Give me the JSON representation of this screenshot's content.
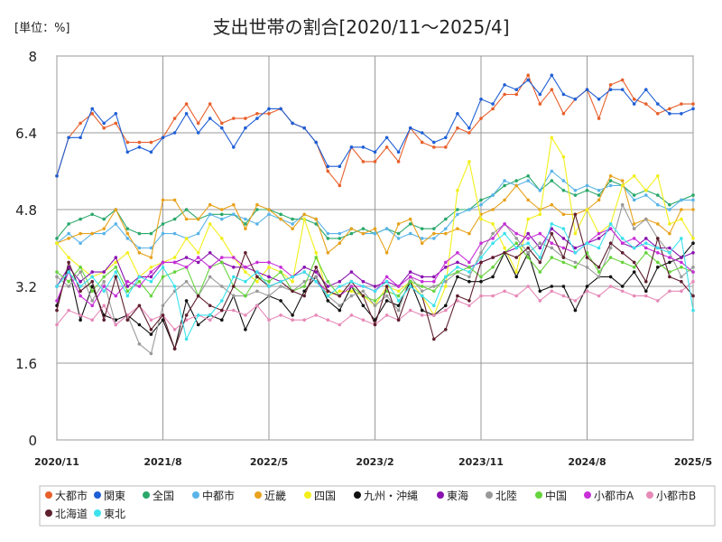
{
  "header": {
    "unit_label": "[単位：%]",
    "title": "支出世帯の割合[2020/11～2025/4]"
  },
  "chart_data": {
    "type": "line",
    "ylim": [
      0,
      8
    ],
    "y_ticks": [
      "0",
      "1.6",
      "3.2",
      "4.8",
      "6.4",
      "8"
    ],
    "x_tick_labels": [
      "2020/11",
      "2021/8",
      "2022/5",
      "2023/2",
      "2023/11",
      "2024/8",
      "2025/5"
    ],
    "grid": true,
    "legend_position": "bottom",
    "colors": {
      "大都市": "#e8602c",
      "関東": "#1f5fd6",
      "全国": "#2aa86a",
      "中都市": "#5ab4e8",
      "近畿": "#e8a21c",
      "四国": "#f2ef1a",
      "九州・沖縄": "#111111",
      "東海": "#8a12b0",
      "北陸": "#999999",
      "中国": "#66d43c",
      "小都市A": "#c82fd8",
      "小都市B": "#e68ab8",
      "北海道": "#5e1f2e",
      "東北": "#3ce2ec"
    },
    "series": [
      {
        "name": "大都市",
        "values": [
          5.5,
          6.3,
          6.6,
          6.8,
          6.5,
          6.6,
          6.2,
          6.2,
          6.2,
          6.3,
          6.7,
          7.0,
          6.6,
          7.0,
          6.6,
          6.7,
          6.7,
          6.8,
          6.8,
          6.9,
          6.6,
          6.5,
          6.2,
          5.6,
          5.3,
          6.1,
          5.8,
          5.8,
          6.1,
          5.8,
          6.5,
          6.2,
          6.1,
          6.1,
          6.5,
          6.4,
          6.7,
          6.9,
          7.2,
          7.2,
          7.6,
          7.0,
          7.3,
          6.8,
          7.1,
          7.3,
          6.7,
          7.4,
          7.5,
          7.1,
          7.0,
          6.8,
          6.9,
          7.0,
          7.0
        ]
      },
      {
        "name": "関東",
        "values": [
          5.5,
          6.3,
          6.3,
          6.9,
          6.6,
          6.8,
          6.0,
          6.1,
          6.0,
          6.3,
          6.4,
          6.8,
          6.4,
          6.7,
          6.5,
          6.1,
          6.5,
          6.7,
          6.9,
          6.9,
          6.6,
          6.5,
          6.2,
          5.7,
          5.7,
          6.1,
          6.1,
          6.0,
          6.3,
          6.0,
          6.5,
          6.4,
          6.2,
          6.3,
          6.8,
          6.5,
          7.1,
          7.0,
          7.4,
          7.3,
          7.5,
          7.2,
          7.6,
          7.2,
          7.1,
          7.3,
          7.1,
          7.3,
          7.3,
          7.0,
          7.3,
          7.0,
          6.8,
          6.8,
          6.9
        ]
      },
      {
        "name": "全国",
        "values": [
          4.2,
          4.5,
          4.6,
          4.7,
          4.6,
          4.8,
          4.4,
          4.3,
          4.3,
          4.5,
          4.6,
          4.8,
          4.6,
          4.7,
          4.7,
          4.7,
          4.5,
          4.8,
          4.8,
          4.7,
          4.6,
          4.6,
          4.5,
          4.2,
          4.2,
          4.3,
          4.4,
          4.3,
          4.4,
          4.3,
          4.5,
          4.4,
          4.4,
          4.6,
          4.8,
          4.8,
          5.0,
          5.1,
          5.3,
          5.4,
          5.5,
          5.2,
          5.4,
          5.2,
          5.1,
          5.2,
          5.1,
          5.4,
          5.3,
          5.1,
          5.2,
          5.1,
          4.9,
          5.0,
          5.1
        ]
      },
      {
        "name": "中都市",
        "values": [
          4.1,
          4.3,
          4.1,
          4.3,
          4.3,
          4.5,
          4.2,
          4.0,
          4.0,
          4.3,
          4.3,
          4.2,
          4.3,
          4.7,
          4.6,
          4.7,
          4.6,
          4.5,
          4.7,
          4.6,
          4.5,
          4.7,
          4.6,
          4.3,
          4.3,
          4.4,
          4.3,
          4.3,
          4.4,
          4.2,
          4.3,
          4.2,
          4.2,
          4.4,
          4.7,
          4.8,
          4.9,
          5.1,
          5.4,
          5.3,
          5.4,
          5.2,
          5.6,
          5.4,
          5.2,
          5.3,
          5.2,
          5.3,
          5.3,
          5.0,
          5.1,
          4.9,
          4.8,
          5.0,
          5.0
        ]
      },
      {
        "name": "近畿",
        "values": [
          4.1,
          4.2,
          4.3,
          4.3,
          4.4,
          4.8,
          4.3,
          3.9,
          3.8,
          5.0,
          5.0,
          4.6,
          4.6,
          4.9,
          4.8,
          4.9,
          4.4,
          4.9,
          4.8,
          4.6,
          4.4,
          4.7,
          4.6,
          3.9,
          4.1,
          4.4,
          4.3,
          4.4,
          3.9,
          4.5,
          4.6,
          4.1,
          4.3,
          4.3,
          4.4,
          4.3,
          4.7,
          4.8,
          5.0,
          5.3,
          5.0,
          4.8,
          4.9,
          4.7,
          4.7,
          4.8,
          5.0,
          5.5,
          5.4,
          4.5,
          4.6,
          4.5,
          4.3,
          4.8,
          4.8
        ]
      },
      {
        "name": "四国",
        "values": [
          4.1,
          3.8,
          3.6,
          3.4,
          3.5,
          3.7,
          3.9,
          3.4,
          3.6,
          3.7,
          3.8,
          4.2,
          3.9,
          4.5,
          4.2,
          3.8,
          3.5,
          3.3,
          3.6,
          3.5,
          3.3,
          4.6,
          3.9,
          3.0,
          3.1,
          3.1,
          3.0,
          2.8,
          3.2,
          3.1,
          3.3,
          3.0,
          2.6,
          3.2,
          5.2,
          5.8,
          4.6,
          4.5,
          4.0,
          3.5,
          4.6,
          4.7,
          6.3,
          5.9,
          4.3,
          4.8,
          4.3,
          4.5,
          5.3,
          5.5,
          5.2,
          5.5,
          4.5,
          4.6,
          4.2
        ]
      },
      {
        "name": "九州・沖縄",
        "values": [
          2.8,
          3.6,
          2.5,
          3.2,
          2.6,
          2.5,
          2.6,
          2.4,
          2.2,
          2.5,
          1.9,
          2.9,
          2.4,
          2.6,
          2.5,
          3.0,
          2.3,
          2.8,
          3.0,
          2.9,
          2.6,
          3.1,
          3.4,
          2.9,
          2.7,
          3.2,
          2.8,
          2.5,
          2.9,
          2.8,
          3.3,
          2.7,
          2.6,
          2.8,
          3.4,
          3.3,
          3.3,
          3.4,
          3.9,
          3.4,
          3.9,
          3.1,
          3.2,
          3.2,
          2.7,
          3.2,
          3.4,
          3.4,
          3.2,
          3.5,
          3.1,
          3.6,
          3.7,
          3.8,
          4.1
        ]
      },
      {
        "name": "東海",
        "values": [
          3.2,
          3.6,
          3.3,
          3.5,
          3.5,
          3.8,
          3.2,
          3.4,
          3.4,
          3.7,
          3.7,
          3.8,
          3.7,
          3.9,
          3.7,
          3.6,
          3.6,
          3.5,
          3.4,
          3.3,
          3.4,
          3.6,
          3.5,
          3.2,
          3.3,
          3.5,
          3.3,
          3.2,
          3.3,
          3.2,
          3.5,
          3.4,
          3.4,
          3.6,
          3.7,
          3.6,
          3.7,
          3.8,
          3.9,
          4.0,
          4.3,
          4.0,
          4.4,
          4.2,
          4.0,
          4.1,
          4.2,
          4.4,
          4.1,
          4.0,
          4.2,
          4.0,
          4.0,
          3.8,
          3.9
        ]
      },
      {
        "name": "北陸",
        "values": [
          3.4,
          3.2,
          3.5,
          2.9,
          3.3,
          2.4,
          2.6,
          2.0,
          1.8,
          2.8,
          3.1,
          3.3,
          3.0,
          3.4,
          3.2,
          3.0,
          3.0,
          3.1,
          3.0,
          3.2,
          3.1,
          3.3,
          3.4,
          3.0,
          2.8,
          3.0,
          3.1,
          2.8,
          3.0,
          2.7,
          3.4,
          3.1,
          3.2,
          3.3,
          3.5,
          3.4,
          3.9,
          4.3,
          4.5,
          4.2,
          3.9,
          4.1,
          4.0,
          3.8,
          3.7,
          3.6,
          3.4,
          4.0,
          4.9,
          4.4,
          4.6,
          4.2,
          3.9,
          3.4,
          3.6
        ]
      },
      {
        "name": "中国",
        "values": [
          3.5,
          3.3,
          3.6,
          3.1,
          3.4,
          3.6,
          3.1,
          3.3,
          3.0,
          3.4,
          3.5,
          3.6,
          3.0,
          3.6,
          3.7,
          3.2,
          3.0,
          3.4,
          3.3,
          3.5,
          3.1,
          3.2,
          3.8,
          3.3,
          3.0,
          3.2,
          3.0,
          2.9,
          3.1,
          3.0,
          3.3,
          3.2,
          3.1,
          3.4,
          3.5,
          3.6,
          3.4,
          3.6,
          3.9,
          4.1,
          3.8,
          3.5,
          3.8,
          3.7,
          3.6,
          3.9,
          3.5,
          3.8,
          3.7,
          3.6,
          3.9,
          3.7,
          3.5,
          3.6,
          3.5
        ]
      },
      {
        "name": "小都市A",
        "values": [
          2.9,
          3.5,
          3.0,
          2.8,
          3.2,
          3.0,
          3.3,
          3.2,
          3.5,
          3.7,
          3.7,
          3.6,
          3.8,
          3.6,
          3.8,
          3.8,
          3.6,
          3.7,
          3.7,
          3.6,
          3.4,
          3.5,
          3.3,
          3.1,
          3.0,
          3.2,
          3.2,
          3.1,
          3.4,
          3.2,
          3.4,
          3.3,
          3.3,
          3.7,
          3.9,
          3.7,
          4.1,
          4.2,
          4.5,
          4.3,
          4.2,
          4.3,
          4.1,
          4.0,
          3.9,
          4.1,
          4.3,
          4.4,
          4.1,
          4.2,
          4.0,
          3.9,
          3.8,
          3.7,
          3.5
        ]
      },
      {
        "name": "小都市B",
        "values": [
          2.4,
          2.7,
          2.6,
          2.5,
          2.8,
          2.4,
          2.6,
          2.8,
          2.5,
          2.6,
          2.3,
          2.5,
          2.6,
          2.5,
          2.7,
          2.7,
          2.6,
          2.8,
          2.5,
          2.6,
          2.5,
          2.5,
          2.6,
          2.5,
          2.4,
          2.6,
          2.5,
          2.4,
          2.6,
          2.5,
          2.7,
          2.6,
          2.6,
          2.7,
          2.9,
          2.8,
          3.0,
          3.0,
          3.1,
          3.0,
          3.2,
          2.9,
          3.1,
          3.0,
          2.9,
          3.1,
          3.0,
          3.2,
          3.1,
          3.0,
          3.0,
          2.9,
          3.1,
          3.1,
          3.3
        ]
      },
      {
        "name": "北海道",
        "values": [
          2.7,
          3.7,
          3.1,
          3.3,
          2.5,
          3.4,
          2.5,
          2.8,
          2.3,
          2.6,
          1.9,
          2.6,
          3.0,
          2.8,
          2.7,
          3.2,
          3.9,
          3.4,
          3.2,
          3.3,
          3.1,
          3.0,
          3.6,
          3.1,
          3.0,
          3.3,
          3.0,
          2.4,
          3.2,
          2.5,
          3.2,
          3.0,
          2.1,
          2.3,
          3.0,
          2.9,
          3.7,
          3.8,
          3.9,
          3.8,
          4.0,
          3.7,
          4.3,
          3.8,
          4.7,
          3.8,
          3.6,
          4.1,
          3.9,
          3.7,
          3.3,
          4.2,
          3.4,
          3.3,
          3.0
        ]
      },
      {
        "name": "東北",
        "values": [
          3.2,
          3.5,
          3.2,
          3.4,
          3.1,
          3.5,
          3.0,
          3.4,
          3.3,
          3.6,
          3.2,
          2.1,
          2.6,
          2.6,
          2.9,
          3.4,
          3.3,
          3.5,
          3.2,
          3.3,
          3.4,
          3.5,
          3.3,
          3.0,
          3.2,
          3.3,
          3.2,
          3.1,
          3.3,
          2.9,
          3.2,
          3.0,
          2.8,
          3.4,
          3.6,
          3.5,
          3.8,
          4.1,
          4.3,
          4.0,
          4.1,
          3.8,
          4.5,
          4.4,
          3.9,
          4.1,
          4.0,
          4.5,
          4.2,
          4.0,
          4.1,
          4.0,
          3.9,
          4.2,
          2.7
        ]
      }
    ]
  }
}
